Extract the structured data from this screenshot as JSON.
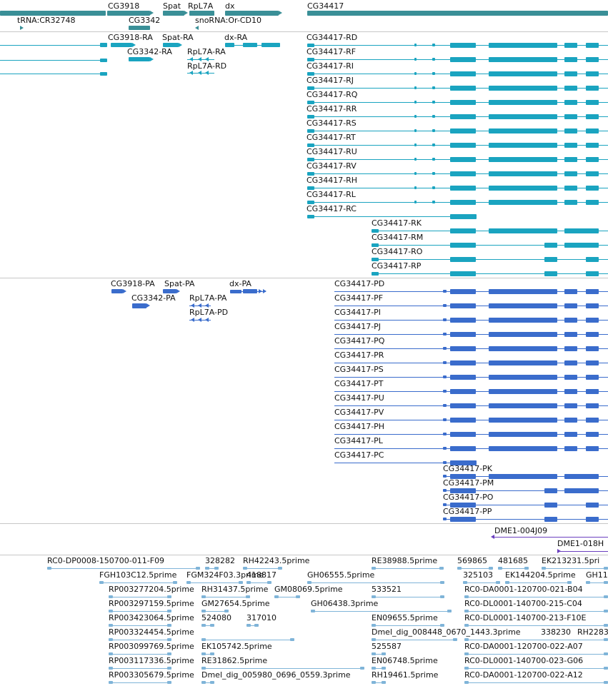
{
  "colors": {
    "gene": "#3a8f97",
    "transcript": "#1aa4c0",
    "protein": "#3a6ccc",
    "protein_dark": "#2a55b0",
    "reagent": "#6b3fbf",
    "est": "#7fb4d8",
    "divider": "#c7c7c7"
  },
  "genes": [
    "CG3918",
    "Spat",
    "RpL7A",
    "dx",
    "CG34417",
    "tRNA:CR32748",
    "CG3342",
    "snoRNA:Or-CD10"
  ],
  "transcripts": [
    "CG3918-RA",
    "Spat-RA",
    "dx-RA",
    "CG3342-RA",
    "RpL7A-RA",
    "RpL7A-RD",
    "CG34417-RD",
    "CG34417-RF",
    "CG34417-RI",
    "CG34417-RJ",
    "CG34417-RQ",
    "CG34417-RR",
    "CG34417-RS",
    "CG34417-RT",
    "CG34417-RU",
    "CG34417-RV",
    "CG34417-RH",
    "CG34417-RL",
    "CG34417-RC",
    "CG34417-RK",
    "CG34417-RM",
    "CG34417-RO",
    "CG34417-RP"
  ],
  "proteins": [
    "CG3918-PA",
    "Spat-PA",
    "dx-PA",
    "CG3342-PA",
    "RpL7A-PA",
    "RpL7A-PD",
    "CG34417-PD",
    "CG34417-PF",
    "CG34417-PI",
    "CG34417-PJ",
    "CG34417-PQ",
    "CG34417-PR",
    "CG34417-PS",
    "CG34417-PT",
    "CG34417-PU",
    "CG34417-PV",
    "CG34417-PH",
    "CG34417-PL",
    "CG34417-PC",
    "CG34417-PK",
    "CG34417-PM",
    "CG34417-PO",
    "CG34417-PP"
  ],
  "reagents": [
    "DME1-004J09",
    "DME1-018H"
  ],
  "ests": [
    "RC0-DP0008-150700-011-F09",
    "328282",
    "RH42243.5prime",
    "RE38988.5prime",
    "569865",
    "481685",
    "EK213231.5pri",
    "FGH103C12.5prime",
    "FGM324F03.3prime",
    "418817",
    "GH06555.5prime",
    "325103",
    "EK144204.5prime",
    "GH11",
    "RP003277204.5prime",
    "RH31437.5prime",
    "GM08069.5prime",
    "533521",
    "RC0-DA0001-120700-021-B04",
    "RP003297159.5prime",
    "GM27654.5prime",
    "GH06438.3prime",
    "RC0-DL0001-140700-215-C04",
    "RP003423064.5prime",
    "524080",
    "317010",
    "EN09655.5prime",
    "RC0-DL0001-140700-213-F10E",
    "RP003324454.5prime",
    "Dmel_dig_008448_0670_1443.3prime",
    "338230",
    "RH2283",
    "RP003099769.5prime",
    "EK105742.5prime",
    "525587",
    "RC0-DA0001-120700-022-A07",
    "RP003117336.5prime",
    "RE31862.5prime",
    "EN06748.5prime",
    "RC0-DL0001-140700-023-G06",
    "RP003305679.5prime",
    "Dmel_dig_005980_0696_0559.3prime",
    "RH19461.5prime",
    "RC0-DA0001-120700-022-A12"
  ]
}
